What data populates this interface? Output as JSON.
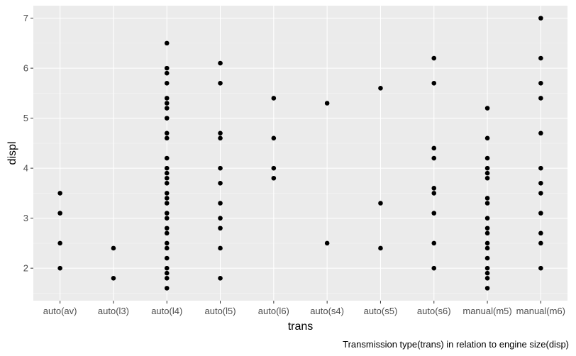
{
  "chart_data": {
    "type": "scatter",
    "title": "",
    "xlabel": "trans",
    "ylabel": "displ",
    "caption": "Transmission type(trans) in relation to engine size(disp)",
    "categories": [
      "auto(av)",
      "auto(l3)",
      "auto(l4)",
      "auto(l5)",
      "auto(l6)",
      "auto(s4)",
      "auto(s5)",
      "auto(s6)",
      "manual(m5)",
      "manual(m6)"
    ],
    "ylim": [
      1.35,
      7.25
    ],
    "yticks": [
      2,
      3,
      4,
      5,
      6,
      7
    ],
    "grid": true,
    "legend": "none",
    "points": [
      {
        "x": "auto(av)",
        "y": 2.0
      },
      {
        "x": "auto(av)",
        "y": 2.5
      },
      {
        "x": "auto(av)",
        "y": 3.1
      },
      {
        "x": "auto(av)",
        "y": 3.5
      },
      {
        "x": "auto(l3)",
        "y": 1.8
      },
      {
        "x": "auto(l3)",
        "y": 2.4
      },
      {
        "x": "auto(l4)",
        "y": 1.6
      },
      {
        "x": "auto(l4)",
        "y": 1.8
      },
      {
        "x": "auto(l4)",
        "y": 1.9
      },
      {
        "x": "auto(l4)",
        "y": 2.0
      },
      {
        "x": "auto(l4)",
        "y": 2.2
      },
      {
        "x": "auto(l4)",
        "y": 2.4
      },
      {
        "x": "auto(l4)",
        "y": 2.5
      },
      {
        "x": "auto(l4)",
        "y": 2.7
      },
      {
        "x": "auto(l4)",
        "y": 2.8
      },
      {
        "x": "auto(l4)",
        "y": 3.0
      },
      {
        "x": "auto(l4)",
        "y": 3.1
      },
      {
        "x": "auto(l4)",
        "y": 3.3
      },
      {
        "x": "auto(l4)",
        "y": 3.4
      },
      {
        "x": "auto(l4)",
        "y": 3.5
      },
      {
        "x": "auto(l4)",
        "y": 3.7
      },
      {
        "x": "auto(l4)",
        "y": 3.8
      },
      {
        "x": "auto(l4)",
        "y": 3.9
      },
      {
        "x": "auto(l4)",
        "y": 4.0
      },
      {
        "x": "auto(l4)",
        "y": 4.2
      },
      {
        "x": "auto(l4)",
        "y": 4.6
      },
      {
        "x": "auto(l4)",
        "y": 4.7
      },
      {
        "x": "auto(l4)",
        "y": 5.0
      },
      {
        "x": "auto(l4)",
        "y": 5.2
      },
      {
        "x": "auto(l4)",
        "y": 5.3
      },
      {
        "x": "auto(l4)",
        "y": 5.4
      },
      {
        "x": "auto(l4)",
        "y": 5.7
      },
      {
        "x": "auto(l4)",
        "y": 5.9
      },
      {
        "x": "auto(l4)",
        "y": 6.0
      },
      {
        "x": "auto(l4)",
        "y": 6.5
      },
      {
        "x": "auto(l5)",
        "y": 1.8
      },
      {
        "x": "auto(l5)",
        "y": 2.4
      },
      {
        "x": "auto(l5)",
        "y": 2.8
      },
      {
        "x": "auto(l5)",
        "y": 3.0
      },
      {
        "x": "auto(l5)",
        "y": 3.3
      },
      {
        "x": "auto(l5)",
        "y": 3.7
      },
      {
        "x": "auto(l5)",
        "y": 4.0
      },
      {
        "x": "auto(l5)",
        "y": 4.6
      },
      {
        "x": "auto(l5)",
        "y": 4.7
      },
      {
        "x": "auto(l5)",
        "y": 5.7
      },
      {
        "x": "auto(l5)",
        "y": 6.1
      },
      {
        "x": "auto(l6)",
        "y": 3.8
      },
      {
        "x": "auto(l6)",
        "y": 4.0
      },
      {
        "x": "auto(l6)",
        "y": 4.6
      },
      {
        "x": "auto(l6)",
        "y": 5.4
      },
      {
        "x": "auto(s4)",
        "y": 2.5
      },
      {
        "x": "auto(s4)",
        "y": 5.3
      },
      {
        "x": "auto(s5)",
        "y": 2.4
      },
      {
        "x": "auto(s5)",
        "y": 3.3
      },
      {
        "x": "auto(s5)",
        "y": 5.6
      },
      {
        "x": "auto(s6)",
        "y": 2.0
      },
      {
        "x": "auto(s6)",
        "y": 2.5
      },
      {
        "x": "auto(s6)",
        "y": 3.1
      },
      {
        "x": "auto(s6)",
        "y": 3.5
      },
      {
        "x": "auto(s6)",
        "y": 3.6
      },
      {
        "x": "auto(s6)",
        "y": 4.2
      },
      {
        "x": "auto(s6)",
        "y": 4.4
      },
      {
        "x": "auto(s6)",
        "y": 5.7
      },
      {
        "x": "auto(s6)",
        "y": 6.2
      },
      {
        "x": "manual(m5)",
        "y": 1.6
      },
      {
        "x": "manual(m5)",
        "y": 1.8
      },
      {
        "x": "manual(m5)",
        "y": 1.9
      },
      {
        "x": "manual(m5)",
        "y": 2.0
      },
      {
        "x": "manual(m5)",
        "y": 2.2
      },
      {
        "x": "manual(m5)",
        "y": 2.4
      },
      {
        "x": "manual(m5)",
        "y": 2.5
      },
      {
        "x": "manual(m5)",
        "y": 2.7
      },
      {
        "x": "manual(m5)",
        "y": 2.8
      },
      {
        "x": "manual(m5)",
        "y": 3.0
      },
      {
        "x": "manual(m5)",
        "y": 3.3
      },
      {
        "x": "manual(m5)",
        "y": 3.4
      },
      {
        "x": "manual(m5)",
        "y": 3.8
      },
      {
        "x": "manual(m5)",
        "y": 3.9
      },
      {
        "x": "manual(m5)",
        "y": 4.0
      },
      {
        "x": "manual(m5)",
        "y": 4.2
      },
      {
        "x": "manual(m5)",
        "y": 4.6
      },
      {
        "x": "manual(m5)",
        "y": 5.2
      },
      {
        "x": "manual(m6)",
        "y": 2.0
      },
      {
        "x": "manual(m6)",
        "y": 2.5
      },
      {
        "x": "manual(m6)",
        "y": 2.7
      },
      {
        "x": "manual(m6)",
        "y": 3.1
      },
      {
        "x": "manual(m6)",
        "y": 3.5
      },
      {
        "x": "manual(m6)",
        "y": 3.7
      },
      {
        "x": "manual(m6)",
        "y": 4.0
      },
      {
        "x": "manual(m6)",
        "y": 4.7
      },
      {
        "x": "manual(m6)",
        "y": 5.4
      },
      {
        "x": "manual(m6)",
        "y": 5.7
      },
      {
        "x": "manual(m6)",
        "y": 6.2
      },
      {
        "x": "manual(m6)",
        "y": 7.0
      }
    ],
    "colors": {
      "panel": "#ebebeb",
      "grid_major": "#ffffff",
      "grid_minor": "#f5f5f5",
      "point": "#000000",
      "tick_text": "#4d4d4d",
      "tick_mark": "#333333"
    }
  }
}
